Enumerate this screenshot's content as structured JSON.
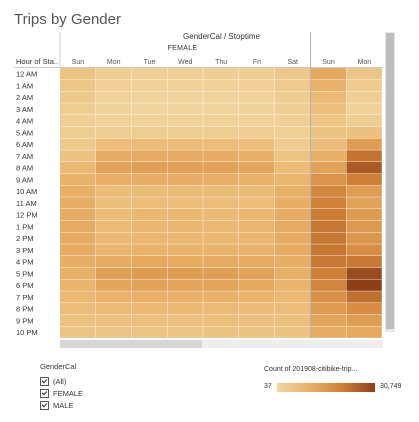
{
  "title": "Trips by Gender",
  "filter": {
    "title": "GenderCal",
    "options": [
      "(All)",
      "FEMALE",
      "MALE"
    ]
  },
  "legend": {
    "title": "Count of 201908-citibike-trip...",
    "min": "37",
    "max": "30,749"
  },
  "colors": {
    "low": "#f1d7a0",
    "mid": "#e9b067",
    "high": "#cf7f36",
    "max": "#8e3f17"
  },
  "chart_data": {
    "type": "heatmap",
    "title": "Trips by Gender",
    "column_group_label": "GenderCal / Stoptime",
    "row_header": "Hour of Sta..",
    "groups": [
      {
        "name": "FEMALE",
        "days": [
          "Sun",
          "Mon",
          "Tue",
          "Wed",
          "Thu",
          "Fri",
          "Sat"
        ]
      },
      {
        "name": "",
        "days": [
          "Sun",
          "Mon"
        ]
      }
    ],
    "rows": [
      "12 AM",
      "1 AM",
      "2 AM",
      "3 AM",
      "4 AM",
      "5 AM",
      "6 AM",
      "7 AM",
      "8 AM",
      "9 AM",
      "10 AM",
      "11 AM",
      "12 PM",
      "1 PM",
      "2 PM",
      "3 PM",
      "4 PM",
      "5 PM",
      "6 PM",
      "7 PM",
      "8 PM",
      "9 PM",
      "10 PM"
    ],
    "values": [
      [
        3000,
        1100,
        900,
        900,
        1000,
        1100,
        2000,
        8500,
        2500
      ],
      [
        2300,
        700,
        500,
        500,
        600,
        700,
        1600,
        6500,
        1500
      ],
      [
        1800,
        450,
        350,
        350,
        400,
        450,
        1300,
        5000,
        900
      ],
      [
        1300,
        350,
        300,
        300,
        300,
        350,
        1000,
        3800,
        650
      ],
      [
        900,
        500,
        450,
        450,
        500,
        500,
        700,
        2600,
        1100
      ],
      [
        1100,
        1300,
        1300,
        1300,
        1300,
        1200,
        900,
        3000,
        3500
      ],
      [
        1800,
        4200,
        4400,
        4400,
        4300,
        3900,
        1500,
        4200,
        11000
      ],
      [
        3200,
        8000,
        8200,
        8200,
        8000,
        7200,
        2800,
        7000,
        20000
      ],
      [
        5000,
        10000,
        10500,
        10400,
        10200,
        9200,
        4500,
        10000,
        25000
      ],
      [
        6400,
        7300,
        7600,
        7500,
        7400,
        6600,
        5900,
        13000,
        18000
      ],
      [
        7300,
        4300,
        4500,
        4500,
        4400,
        4400,
        7000,
        16000,
        11000
      ],
      [
        7800,
        4000,
        4300,
        4300,
        4100,
        4300,
        7600,
        17500,
        10000
      ],
      [
        8000,
        4600,
        5200,
        5200,
        4800,
        5300,
        8000,
        18500,
        11500
      ],
      [
        8200,
        4900,
        5500,
        5500,
        5100,
        5600,
        8200,
        19500,
        12000
      ],
      [
        8100,
        5100,
        5700,
        5700,
        5300,
        5900,
        8100,
        19500,
        12500
      ],
      [
        7900,
        6000,
        6500,
        6500,
        6300,
        6600,
        7900,
        19500,
        14500
      ],
      [
        7600,
        8000,
        8500,
        8400,
        8200,
        8100,
        7600,
        19000,
        19000
      ],
      [
        7100,
        10500,
        11200,
        11000,
        10800,
        10000,
        7000,
        18000,
        28000
      ],
      [
        6200,
        9500,
        10000,
        9800,
        9600,
        8800,
        6200,
        16500,
        30749
      ],
      [
        5200,
        6500,
        6900,
        6800,
        6600,
        6200,
        5200,
        14000,
        21000
      ],
      [
        4100,
        4700,
        5000,
        5000,
        4800,
        4600,
        4200,
        11500,
        14500
      ],
      [
        3300,
        3600,
        3800,
        3800,
        3700,
        3600,
        3500,
        9500,
        11000
      ],
      [
        2700,
        2700,
        2800,
        2800,
        2900,
        3000,
        3000,
        8000,
        8500
      ]
    ],
    "range": [
      37,
      30749
    ],
    "grid": false,
    "legend_position": "bottom-right"
  }
}
